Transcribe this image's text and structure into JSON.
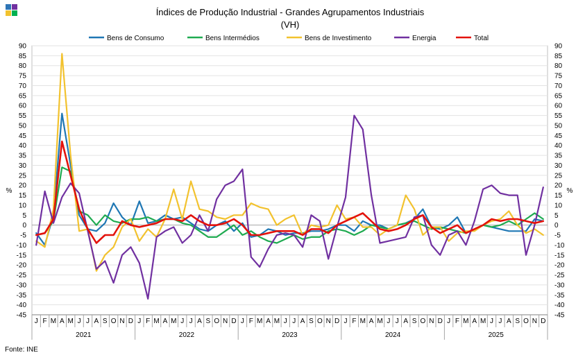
{
  "chart_data": {
    "type": "line",
    "title": "Índices de Produção Industrial - Grandes Agrupamentos Industriais",
    "subtitle": "(VH)",
    "ylabel_left": "%",
    "ylabel_right": "%",
    "ylim": [
      -45,
      90
    ],
    "yticks": [
      90,
      85,
      80,
      75,
      70,
      65,
      60,
      55,
      50,
      45,
      40,
      35,
      30,
      25,
      20,
      15,
      10,
      5,
      0,
      -5,
      -10,
      -15,
      -20,
      -25,
      -30,
      -35,
      -40,
      -45
    ],
    "month_labels": [
      "J",
      "F",
      "M",
      "A",
      "M",
      "J",
      "J",
      "A",
      "S",
      "O",
      "N",
      "D"
    ],
    "years": [
      "2021",
      "2022",
      "2023",
      "2024",
      "2025"
    ],
    "source": "Fonte: INE",
    "series": [
      {
        "name": "Bens de Consumo",
        "color": "#1F77B4",
        "values": [
          -4,
          -10,
          5,
          56,
          30,
          5,
          -2,
          -3,
          1,
          11,
          4,
          0,
          12,
          1,
          2,
          5,
          3,
          4,
          1,
          -2,
          -3,
          0,
          2,
          -3,
          1,
          -6,
          -5,
          -2,
          -3,
          -5,
          -4,
          -4,
          -3,
          -3,
          -2,
          0,
          0,
          -3,
          2,
          0,
          0,
          -2,
          0,
          1,
          3,
          8,
          -1,
          -2,
          0,
          4,
          -4,
          -2,
          0,
          -1,
          -2,
          -3,
          -3,
          -3,
          3,
          2
        ]
      },
      {
        "name": "Bens Intermédios",
        "color": "#1FAA50",
        "values": [
          -5,
          -4,
          2,
          29,
          27,
          7,
          5,
          0,
          5,
          2,
          1,
          3,
          3,
          4,
          2,
          3,
          3,
          1,
          0,
          -3,
          -6,
          -6,
          -3,
          0,
          -5,
          -3,
          -6,
          -8,
          -9,
          -7,
          -5,
          -7,
          -6,
          -6,
          -3,
          -2,
          -3,
          -5,
          -3,
          0,
          -1,
          -2,
          0,
          1,
          2,
          0,
          -2,
          -1,
          -2,
          -3,
          -4,
          -2,
          0,
          -1,
          0,
          2,
          0,
          3,
          6,
          3
        ]
      },
      {
        "name": "Bens de Investimento",
        "color": "#F2C22E",
        "values": [
          -8,
          -11,
          8,
          86,
          35,
          -3,
          -2,
          -23,
          -15,
          -11,
          -1,
          3,
          -8,
          -2,
          -6,
          3,
          18,
          3,
          22,
          8,
          7,
          4,
          3,
          5,
          5,
          11,
          9,
          8,
          0,
          3,
          5,
          -5,
          0,
          -1,
          0,
          10,
          3,
          4,
          -1,
          -1,
          -5,
          -2,
          0,
          15,
          8,
          -5,
          -1,
          -1,
          -8,
          -4,
          -3,
          -3,
          0,
          2,
          3,
          7,
          0,
          -4,
          -2,
          -5
        ]
      },
      {
        "name": "Energia",
        "color": "#7030A0",
        "values": [
          -10,
          17,
          1,
          14,
          21,
          16,
          -3,
          -22,
          -18,
          -29,
          -15,
          -11,
          -19,
          -37,
          -6,
          -3,
          -1,
          -9,
          -5,
          5,
          -3,
          13,
          20,
          22,
          28,
          -16,
          -21,
          -12,
          -5,
          -4,
          -5,
          -11,
          5,
          2,
          -17,
          -1,
          14,
          55,
          48,
          15,
          -9,
          -8,
          -7,
          -6,
          4,
          5,
          -10,
          -15,
          -5,
          -3,
          -10,
          2,
          18,
          20,
          16,
          15,
          15,
          -15,
          0,
          19
        ]
      },
      {
        "name": "Total",
        "color": "#E3120B",
        "values": [
          -5,
          -4,
          3,
          42,
          25,
          8,
          -2,
          -9,
          -5,
          -5,
          2,
          0,
          -1,
          0,
          1,
          3,
          3,
          2,
          5,
          2,
          0,
          0,
          1,
          3,
          0,
          -5,
          -5,
          -4,
          -3,
          -3,
          -3,
          -5,
          -2,
          -2,
          -4,
          0,
          2,
          4,
          6,
          2,
          -2,
          -3,
          -2,
          0,
          3,
          5,
          -1,
          -4,
          -2,
          0,
          -4,
          -2,
          0,
          3,
          2,
          3,
          3,
          2,
          1,
          2
        ]
      }
    ]
  }
}
